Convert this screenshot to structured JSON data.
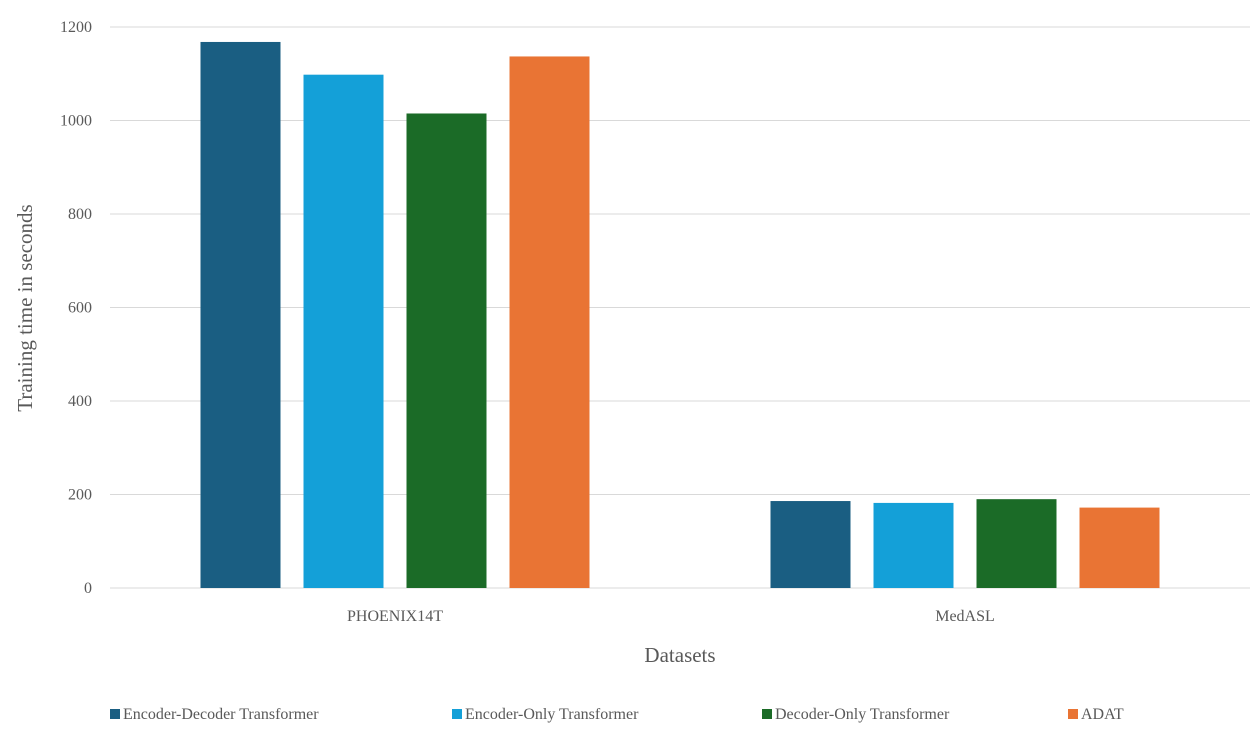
{
  "chart_data": {
    "type": "bar",
    "categories": [
      "PHOENIX14T",
      "MedASL"
    ],
    "series": [
      {
        "name": "Encoder-Decoder Transformer",
        "values": [
          1168,
          186
        ],
        "color": "#1a5e82"
      },
      {
        "name": "Encoder-Only Transformer",
        "values": [
          1098,
          182
        ],
        "color": "#14a0d8"
      },
      {
        "name": "Decoder-Only Transformer",
        "values": [
          1015,
          190
        ],
        "color": "#1b6b27"
      },
      {
        "name": "ADAT",
        "values": [
          1137,
          172
        ],
        "color": "#e97434"
      }
    ],
    "title": "",
    "xlabel": "Datasets",
    "ylabel": "Training time in seconds",
    "ylim": [
      0,
      1200
    ],
    "yticks": [
      0,
      200,
      400,
      600,
      800,
      1000,
      1200
    ],
    "grid": true,
    "legend_position": "bottom"
  }
}
